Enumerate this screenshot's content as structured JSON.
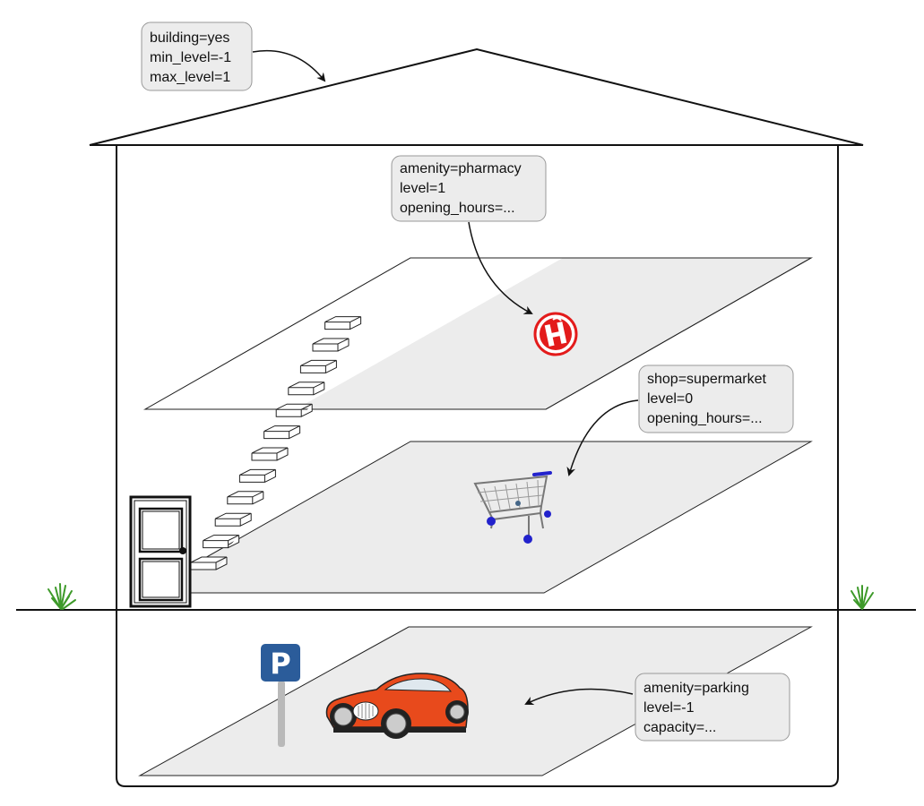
{
  "building_tags": {
    "lines": [
      "building=yes",
      "min_level=-1",
      "max_level=1"
    ]
  },
  "pharmacy_tags": {
    "lines": [
      "amenity=pharmacy",
      "level=1",
      "opening_hours=..."
    ]
  },
  "supermarket_tags": {
    "lines": [
      "shop=supermarket",
      "level=0",
      "opening_hours=..."
    ]
  },
  "parking_tags": {
    "lines": [
      "amenity=parking",
      "level=-1",
      "capacity=..."
    ]
  },
  "parking_sign": {
    "letter": "P"
  },
  "colors": {
    "floor_fill": "#ececec",
    "tag_box_fill": "#ececec",
    "pharmacy_red": "#e31b1b",
    "car_red": "#e84a1c",
    "parking_sign_blue": "#2b5c9a",
    "grass_green": "#3e9a2a",
    "cart_blue": "#2222cc"
  },
  "icons": [
    "pharmacy-icon",
    "shopping-cart-icon",
    "car-icon",
    "parking-sign-icon",
    "door-icon",
    "grass-icon"
  ]
}
